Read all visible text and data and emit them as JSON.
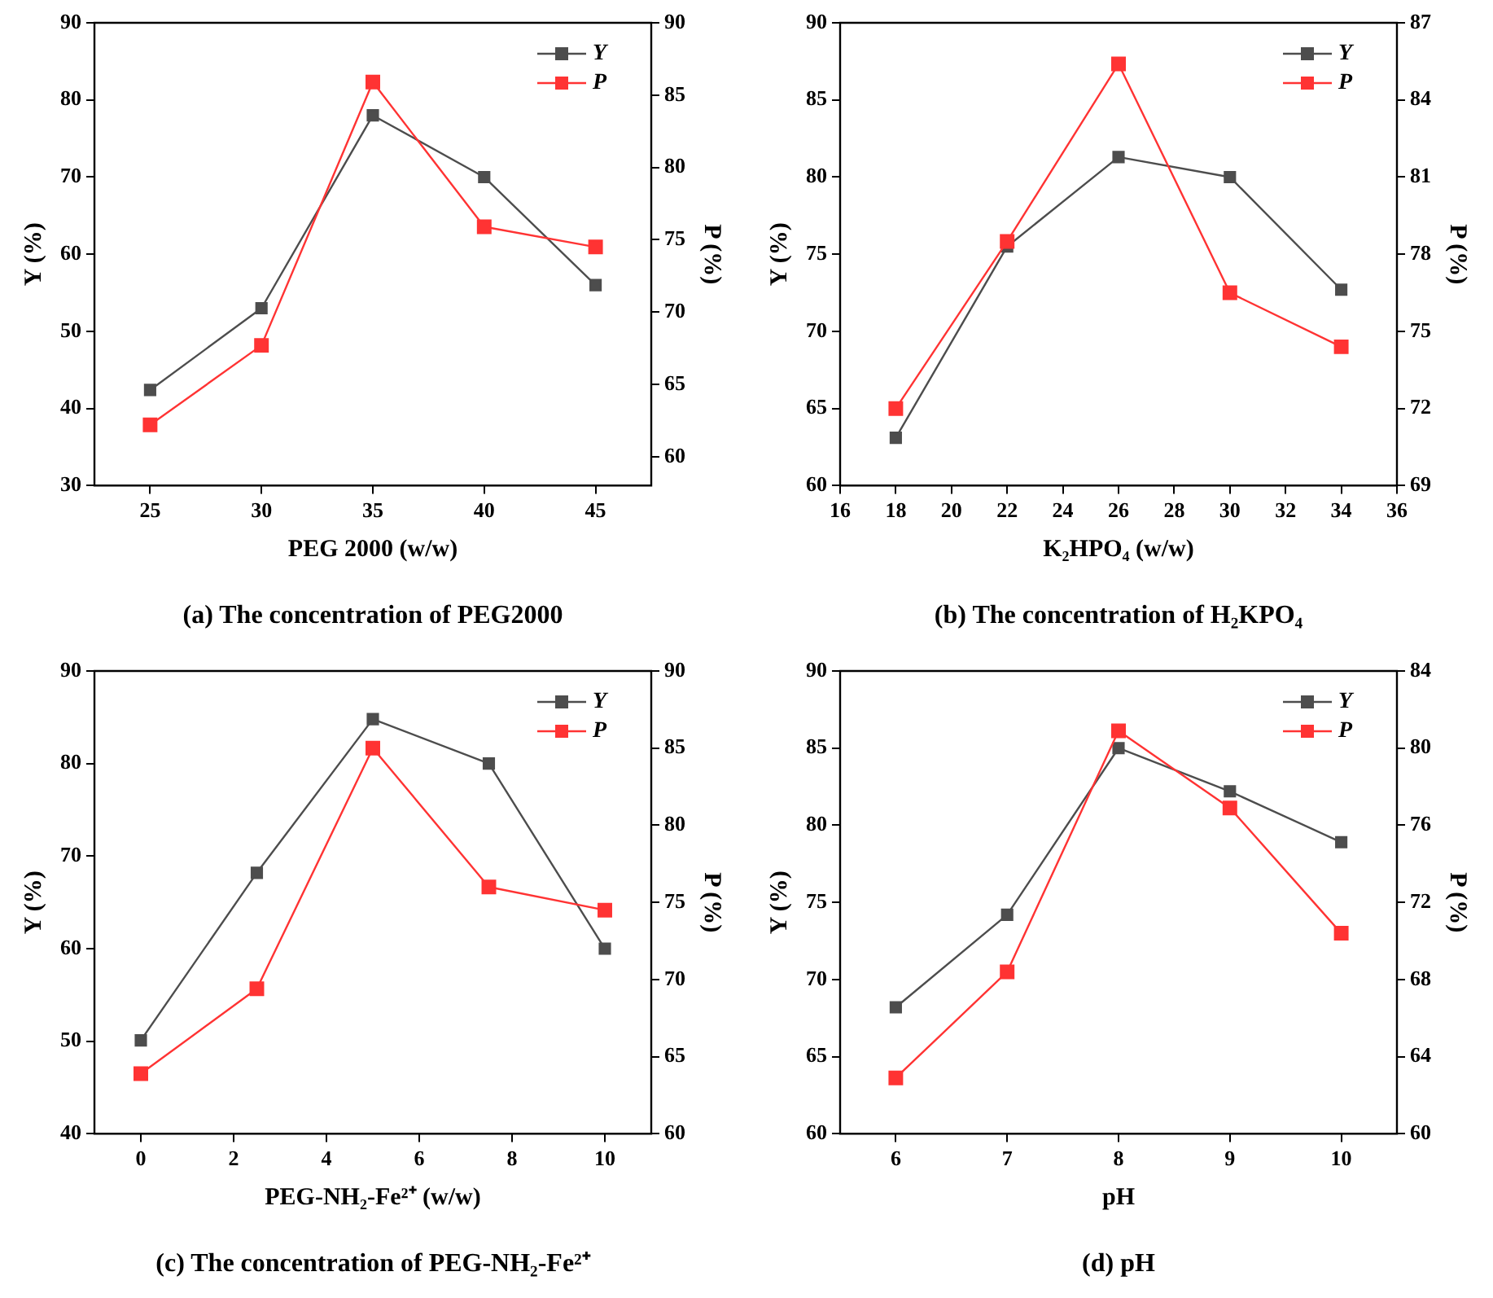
{
  "chart_data": [
    {
      "type": "line",
      "title": "(a) The concentration of PEG2000",
      "xlabel": "PEG 2000 (w/w)",
      "ylabel": "Y (%)",
      "y2label": "P (%)",
      "x": [
        25,
        30,
        35,
        40,
        45
      ],
      "xlim": [
        22.5,
        47.5
      ],
      "xticks": [
        25,
        30,
        35,
        40,
        45
      ],
      "ylim": [
        30,
        90
      ],
      "yticks": [
        30,
        40,
        50,
        60,
        70,
        80,
        90
      ],
      "y2lim": [
        58,
        90
      ],
      "y2ticks": [
        60,
        65,
        70,
        75,
        80,
        85,
        90
      ],
      "marker": "square",
      "legend": "top right",
      "grid": false,
      "series": [
        {
          "name": "Y",
          "color": "#4d4d4d",
          "values": [
            42.4,
            53,
            78,
            70,
            56
          ]
        },
        {
          "name": "P",
          "color": "#ff3333",
          "axis": "y2",
          "values": [
            62.2,
            67.7,
            85.9,
            75.9,
            74.5
          ]
        }
      ]
    },
    {
      "type": "line",
      "title": "(b) The concentration of H₂KPO₄",
      "xlabel": "K₂HPO₄ (w/w)",
      "ylabel": "Y (%)",
      "y2label": "P (%)",
      "x": [
        18,
        22,
        26,
        30,
        34
      ],
      "xlim": [
        16,
        36
      ],
      "xticks": [
        16,
        18,
        20,
        22,
        24,
        26,
        28,
        30,
        32,
        34,
        36
      ],
      "ylim": [
        60,
        90
      ],
      "yticks": [
        60,
        65,
        70,
        75,
        80,
        85,
        90
      ],
      "y2lim": [
        69,
        87
      ],
      "y2ticks": [
        69,
        72,
        75,
        78,
        81,
        84,
        87
      ],
      "marker": "square",
      "legend": "top right",
      "grid": false,
      "series": [
        {
          "name": "Y",
          "color": "#4d4d4d",
          "values": [
            63.1,
            75.5,
            81.3,
            80,
            72.7
          ]
        },
        {
          "name": "P",
          "color": "#ff3333",
          "axis": "y2",
          "values": [
            72,
            78.5,
            85.4,
            76.5,
            74.4
          ]
        }
      ]
    },
    {
      "type": "line",
      "title": "(c) The concentration of PEG-NH₂-Fe²⁺",
      "xlabel": "PEG-NH₂-Fe²⁺ (w/w)",
      "ylabel": "Y (%)",
      "y2label": "P (%)",
      "x": [
        0,
        2.5,
        5,
        7.5,
        10
      ],
      "xlim": [
        -1,
        11
      ],
      "xticks": [
        0,
        2,
        4,
        6,
        8,
        10
      ],
      "ylim": [
        40,
        90
      ],
      "yticks": [
        40,
        50,
        60,
        70,
        80,
        90
      ],
      "y2lim": [
        60,
        90
      ],
      "y2ticks": [
        60,
        65,
        70,
        75,
        80,
        85,
        90
      ],
      "marker": "square",
      "legend": "top right",
      "grid": false,
      "series": [
        {
          "name": "Y",
          "color": "#4d4d4d",
          "values": [
            50.1,
            68.2,
            84.8,
            80,
            60
          ]
        },
        {
          "name": "P",
          "color": "#ff3333",
          "axis": "y2",
          "values": [
            63.9,
            69.4,
            85,
            76,
            74.5
          ]
        }
      ]
    },
    {
      "type": "line",
      "title": "(d) pH",
      "xlabel": "pH",
      "ylabel": "Y (%)",
      "y2label": "P (%)",
      "x": [
        6,
        7,
        8,
        9,
        10
      ],
      "xlim": [
        5.5,
        10.5
      ],
      "xticks": [
        6,
        7,
        8,
        9,
        10
      ],
      "ylim": [
        60,
        90
      ],
      "yticks": [
        60,
        65,
        70,
        75,
        80,
        85,
        90
      ],
      "y2lim": [
        60,
        84
      ],
      "y2ticks": [
        60,
        64,
        68,
        72,
        76,
        80,
        84
      ],
      "marker": "square",
      "legend": "top right",
      "grid": false,
      "series": [
        {
          "name": "Y",
          "color": "#4d4d4d",
          "values": [
            68.2,
            74.2,
            85,
            82.2,
            78.9
          ]
        },
        {
          "name": "P",
          "color": "#ff3333",
          "axis": "y2",
          "values": [
            62.9,
            68.4,
            80.9,
            76.9,
            70.4
          ]
        }
      ]
    }
  ]
}
